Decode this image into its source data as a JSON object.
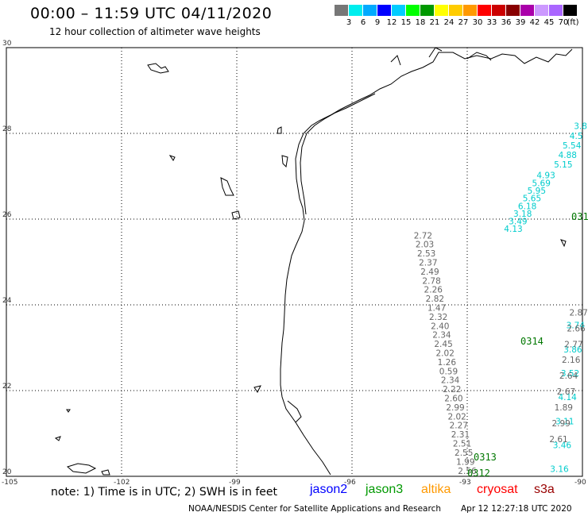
{
  "header": {
    "title": "00:00 – 11:59 UTC 04/11/2020",
    "subtitle": "12 hour collection of altimeter wave heights"
  },
  "color_scale": {
    "colors": [
      "#777777",
      "#00eeee",
      "#00aaff",
      "#0000ff",
      "#00ccff",
      "#00ff00",
      "#009900",
      "#ffff00",
      "#ffcc00",
      "#ff9900",
      "#ff0000",
      "#cc0000",
      "#880000",
      "#aa00aa",
      "#cc99ff",
      "#aa66ff",
      "#000000"
    ],
    "labels": [
      "3",
      "6",
      "9",
      "12",
      "15",
      "18",
      "21",
      "24",
      "27",
      "30",
      "33",
      "36",
      "39",
      "42",
      "45",
      "70"
    ],
    "unit": "(ft)"
  },
  "axes": {
    "lon_labels": [
      "-105",
      "-102",
      "-99",
      "-96",
      "-93",
      "-90"
    ],
    "lat_labels": [
      "30",
      "28",
      "26",
      "24",
      "22",
      "20"
    ]
  },
  "passes": [
    {
      "label": "0314",
      "color": "#007700"
    },
    {
      "label": "0313",
      "color": "#007700"
    },
    {
      "label": "0312",
      "color": "#007700"
    },
    {
      "label": "031",
      "color": "#007700"
    }
  ],
  "tracks": {
    "gray_west": {
      "color": "#666666",
      "values": [
        "2.72",
        "2.03",
        "2.53",
        "2.37",
        "2.49",
        "2.78",
        "2.26",
        "2.82",
        "1.47",
        "2.32",
        "2.40",
        "2.34",
        "2.45",
        "2.02",
        "1.26",
        "0.59",
        "2.34",
        "2.22",
        "2.60",
        "2.99",
        "2.02",
        "2.27",
        "2.31",
        "2.51",
        "2.55",
        "1.99",
        "2.56"
      ],
      "start_lon": -94.15,
      "start_lat": 25.55,
      "end_lon": -93.0,
      "end_lat": 20.06
    },
    "cyan_west": {
      "color": "#00cccc",
      "values": [
        "4.93",
        "5.69",
        "5.95",
        "5.65",
        "6.18",
        "3.18",
        "3.49",
        "4.13"
      ],
      "start_lon": -90.95,
      "start_lat": 26.95,
      "end_lon": -91.8,
      "end_lat": 25.7
    },
    "cyan_east_top": {
      "color": "#00cccc",
      "values": [
        "3.8",
        "4.5",
        "5.54",
        "4.88",
        "5.15"
      ],
      "start_lon": -90.05,
      "start_lat": 28.1,
      "end_lon": -90.5,
      "end_lat": 27.2
    },
    "cyan_east_mid": {
      "color": "#00cccc",
      "values": [
        "3.74",
        "3.86",
        "3.52",
        "4.14",
        "3.11",
        "3.46",
        "3.16"
      ],
      "start_lon": -90.18,
      "start_lat": 23.45,
      "end_lon": -90.6,
      "end_lat": 20.1
    },
    "gray_east": {
      "color": "#666666",
      "values": [
        "2.87",
        "2.66",
        "2.77",
        "2.16",
        "2.64",
        "2.67",
        "1.89",
        "2.99",
        "2.61"
      ],
      "start_lon": -90.1,
      "start_lat": 23.75,
      "end_lon": -90.62,
      "end_lat": 20.8
    }
  },
  "footer": {
    "note": "note:  1) Time is in UTC;  2) SWH is in feet",
    "satellites": [
      {
        "name": "jason2",
        "color": "#0000ff"
      },
      {
        "name": "jason3",
        "color": "#009900"
      },
      {
        "name": "altika",
        "color": "#ff9900"
      },
      {
        "name": "cryosat",
        "color": "#ff0000"
      },
      {
        "name": "s3a",
        "color": "#990000"
      }
    ],
    "credit": "NOAA/NESDIS Center for Satellite Applications and Research",
    "timestamp": "Apr 12 12:27:18 UTC 2020"
  }
}
